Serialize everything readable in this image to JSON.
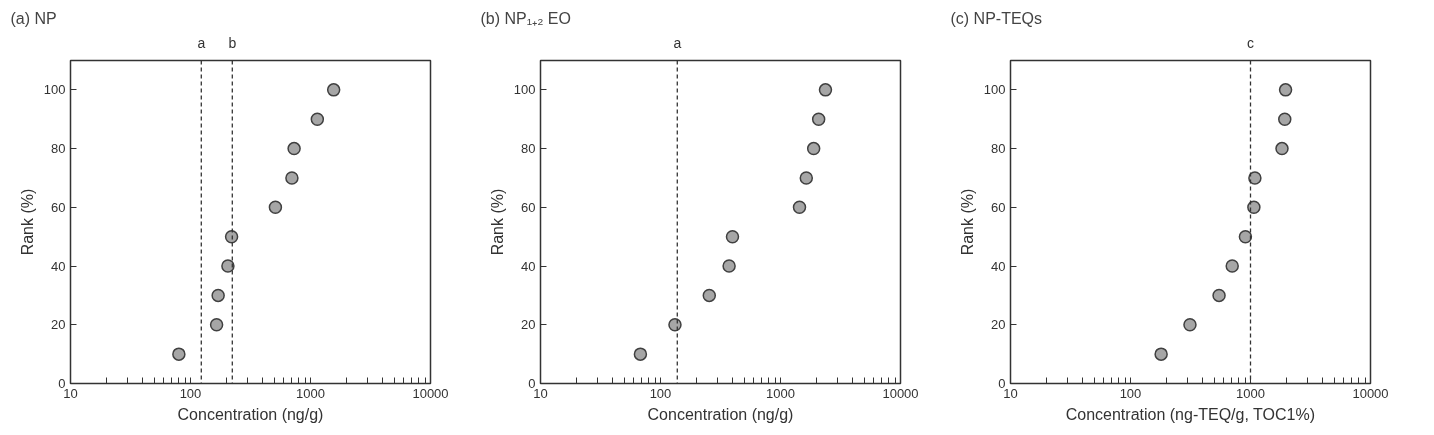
{
  "chart_data": [
    {
      "type": "scatter",
      "title": "(a) NP",
      "xlabel": "Concentration (ng/g)",
      "ylabel": "Rank (%)",
      "log": "x",
      "grid": false,
      "marker": "circle",
      "xlim": [
        10,
        10000
      ],
      "ylim": [
        0,
        110
      ],
      "yticks": [
        0,
        20,
        40,
        60,
        80,
        100
      ],
      "xticks": [
        10,
        {
          "value": 20,
          "label": null
        },
        {
          "value": 30,
          "label": null
        },
        {
          "value": 40,
          "label": null
        },
        {
          "value": 50,
          "label": null
        },
        {
          "value": 60,
          "label": null
        },
        {
          "value": 70,
          "label": null
        },
        {
          "value": 80,
          "label": null
        },
        {
          "value": 90,
          "label": null
        },
        100,
        {
          "value": 200,
          "label": null
        },
        {
          "value": 300,
          "label": null
        },
        {
          "value": 400,
          "label": null
        },
        {
          "value": 500,
          "label": null
        },
        {
          "value": 600,
          "label": null
        },
        {
          "value": 700,
          "label": null
        },
        {
          "value": 800,
          "label": null
        },
        {
          "value": 900,
          "label": null
        },
        1000,
        {
          "value": 2000,
          "label": null
        },
        {
          "value": 3000,
          "label": null
        },
        {
          "value": 4000,
          "label": null
        },
        {
          "value": 5000,
          "label": null
        },
        {
          "value": 6000,
          "label": null
        },
        {
          "value": 7000,
          "label": null
        },
        {
          "value": 8000,
          "label": null
        },
        {
          "value": 9000,
          "label": null
        },
        10000
      ],
      "series": [
        {
          "color": "#a6a6a6",
          "x": [
            80,
            165,
            170,
            205,
            220,
            510,
            700,
            730,
            1140,
            1560
          ],
          "values": [
            10,
            20,
            30,
            40,
            50,
            60,
            70,
            80,
            90,
            100
          ]
        }
      ],
      "ref_lines": [
        {
          "axis": "x",
          "value": 123,
          "label": "a",
          "line_style": "dashed",
          "color": "#333333"
        },
        {
          "axis": "x",
          "value": 223,
          "label": "b",
          "line_style": "dashed",
          "color": "#333333"
        }
      ]
    },
    {
      "type": "scatter",
      "title": "(b) NP₁₊₂ EO",
      "xlabel": "Concentration (ng/g)",
      "ylabel": "Rank (%)",
      "log": "x",
      "grid": false,
      "marker": "circle",
      "xlim": [
        10,
        10000
      ],
      "ylim": [
        0,
        110
      ],
      "yticks": [
        0,
        20,
        40,
        60,
        80,
        100
      ],
      "xticks": [
        10,
        {
          "value": 20,
          "label": null
        },
        {
          "value": 30,
          "label": null
        },
        {
          "value": 40,
          "label": null
        },
        {
          "value": 50,
          "label": null
        },
        {
          "value": 60,
          "label": null
        },
        {
          "value": 70,
          "label": null
        },
        {
          "value": 80,
          "label": null
        },
        {
          "value": 90,
          "label": null
        },
        100,
        {
          "value": 200,
          "label": null
        },
        {
          "value": 300,
          "label": null
        },
        {
          "value": 400,
          "label": null
        },
        {
          "value": 500,
          "label": null
        },
        {
          "value": 600,
          "label": null
        },
        {
          "value": 700,
          "label": null
        },
        {
          "value": 800,
          "label": null
        },
        {
          "value": 900,
          "label": null
        },
        1000,
        {
          "value": 2000,
          "label": null
        },
        {
          "value": 3000,
          "label": null
        },
        {
          "value": 4000,
          "label": null
        },
        {
          "value": 5000,
          "label": null
        },
        {
          "value": 6000,
          "label": null
        },
        {
          "value": 7000,
          "label": null
        },
        {
          "value": 8000,
          "label": null
        },
        {
          "value": 9000,
          "label": null
        },
        10000
      ],
      "series": [
        {
          "color": "#a6a6a6",
          "x": [
            68,
            132,
            255,
            373,
            398,
            1440,
            1640,
            1890,
            2080,
            2370
          ],
          "values": [
            10,
            20,
            30,
            40,
            50,
            60,
            70,
            80,
            90,
            100
          ]
        }
      ],
      "ref_lines": [
        {
          "axis": "x",
          "value": 138,
          "label": "a",
          "line_style": "dashed",
          "color": "#333333"
        }
      ]
    },
    {
      "type": "scatter",
      "title": "(c) NP-TEQs",
      "xlabel": "Concentration (ng-TEQ/g, TOC1%)",
      "ylabel": "Rank (%)",
      "log": "x",
      "grid": false,
      "marker": "circle",
      "xlim": [
        10,
        10000
      ],
      "ylim": [
        0,
        110
      ],
      "yticks": [
        0,
        20,
        40,
        60,
        80,
        100
      ],
      "xticks": [
        10,
        {
          "value": 20,
          "label": null
        },
        {
          "value": 30,
          "label": null
        },
        {
          "value": 40,
          "label": null
        },
        {
          "value": 50,
          "label": null
        },
        {
          "value": 60,
          "label": null
        },
        {
          "value": 70,
          "label": null
        },
        {
          "value": 80,
          "label": null
        },
        {
          "value": 90,
          "label": null
        },
        100,
        {
          "value": 200,
          "label": null
        },
        {
          "value": 300,
          "label": null
        },
        {
          "value": 400,
          "label": null
        },
        {
          "value": 500,
          "label": null
        },
        {
          "value": 600,
          "label": null
        },
        {
          "value": 700,
          "label": null
        },
        {
          "value": 800,
          "label": null
        },
        {
          "value": 900,
          "label": null
        },
        1000,
        {
          "value": 2000,
          "label": null
        },
        {
          "value": 3000,
          "label": null
        },
        {
          "value": 4000,
          "label": null
        },
        {
          "value": 5000,
          "label": null
        },
        {
          "value": 6000,
          "label": null
        },
        {
          "value": 7000,
          "label": null
        },
        {
          "value": 8000,
          "label": null
        },
        {
          "value": 9000,
          "label": null
        },
        10000
      ],
      "series": [
        {
          "color": "#a6a6a6",
          "x": [
            180,
            313,
            547,
            704,
            907,
            1067,
            1088,
            1830,
            1930,
            1960
          ],
          "values": [
            10,
            20,
            30,
            40,
            50,
            60,
            70,
            80,
            90,
            100
          ]
        }
      ],
      "ref_lines": [
        {
          "axis": "x",
          "value": 1000,
          "label": "c",
          "line_style": "dashed",
          "color": "#333333"
        }
      ]
    }
  ]
}
